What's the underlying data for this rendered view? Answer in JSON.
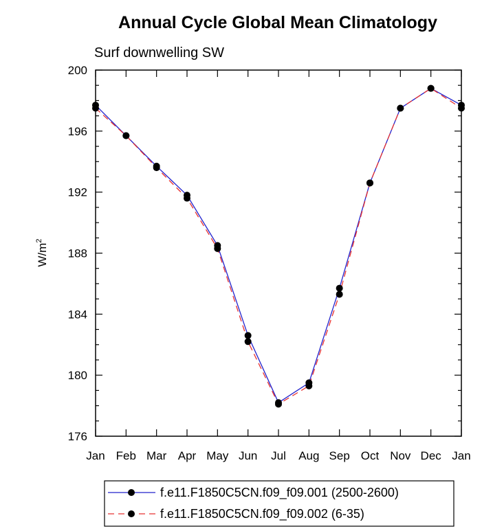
{
  "chart_data": {
    "type": "line",
    "title": "Annual Cycle Global Mean Climatology",
    "subtitle": "Surf downwelling SW",
    "ylabel_base": "W/m",
    "ylabel_exp": "2",
    "xlabel": "",
    "categories": [
      "Jan",
      "Feb",
      "Mar",
      "Apr",
      "May",
      "Jun",
      "Jul",
      "Aug",
      "Sep",
      "Oct",
      "Nov",
      "Dec",
      "Jan"
    ],
    "ylim": [
      176,
      200
    ],
    "yticks": [
      176,
      180,
      184,
      188,
      192,
      196,
      200
    ],
    "grid": false,
    "legend_position": "bottom",
    "series": [
      {
        "name": "f.e11.F1850C5CN.f09_f09.001 (2500-2600)",
        "color": "#2222cc",
        "dash": "solid",
        "values": [
          197.7,
          195.7,
          193.7,
          191.8,
          188.5,
          182.6,
          178.2,
          179.5,
          185.7,
          192.6,
          197.5,
          198.8,
          197.7
        ]
      },
      {
        "name": "f.e11.F1850C5CN.f09_f09.002 (6-35)",
        "color": "#e83030",
        "dash": "dashed",
        "values": [
          197.5,
          195.7,
          193.6,
          191.6,
          188.3,
          182.2,
          178.1,
          179.3,
          185.3,
          192.6,
          197.5,
          198.8,
          197.5
        ]
      }
    ]
  }
}
